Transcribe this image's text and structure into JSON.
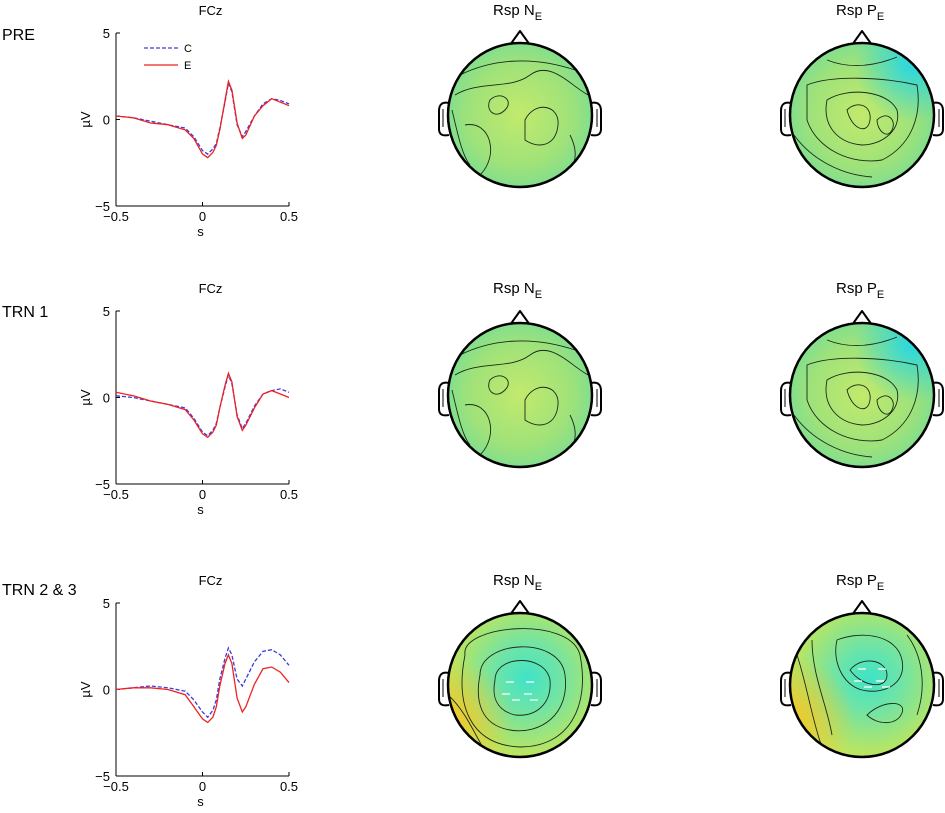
{
  "conditions": [
    "PRE",
    "TRN 1",
    "TRN 2 & 3"
  ],
  "panel_titles": {
    "erp": "FCz",
    "topo_ne_prefix": "Rsp N",
    "topo_pe_prefix": "Rsp P",
    "subscript": "E"
  },
  "legend": {
    "c_label": "C",
    "e_label": "E"
  },
  "colors": {
    "c_line": "#3b3be0",
    "e_line": "#ee2222",
    "axis": "#000000",
    "topo_base": "#a6e36b",
    "topo_cool": "#3fe3c8",
    "topo_warm": "#f2e23a"
  },
  "chart_data": [
    {
      "type": "line",
      "title": "FCz",
      "condition": "PRE",
      "xlabel": "s",
      "ylabel": "µV",
      "xlim": [
        -0.5,
        0.5
      ],
      "ylim": [
        -5,
        5
      ],
      "xticks": [
        -0.5,
        0,
        0.5
      ],
      "yticks": [
        -5,
        0,
        5
      ],
      "xtick_labels": [
        "−0.5",
        "0",
        "0.5"
      ],
      "ytick_labels": [
        "−5",
        "0",
        "5"
      ],
      "legend": "top-left",
      "series": [
        {
          "name": "C",
          "style": "dashed",
          "x": [
            -0.5,
            -0.4,
            -0.3,
            -0.2,
            -0.1,
            -0.05,
            0,
            0.03,
            0.06,
            0.08,
            0.1,
            0.13,
            0.15,
            0.17,
            0.2,
            0.23,
            0.25,
            0.3,
            0.35,
            0.4,
            0.45,
            0.5
          ],
          "y": [
            0.2,
            0.1,
            -0.1,
            -0.3,
            -0.5,
            -1.0,
            -1.8,
            -2.0,
            -1.7,
            -1.4,
            -0.5,
            1.0,
            2.1,
            1.6,
            -0.3,
            -1.0,
            -0.7,
            0.2,
            0.9,
            1.2,
            1.1,
            0.9
          ]
        },
        {
          "name": "E",
          "style": "solid",
          "x": [
            -0.5,
            -0.4,
            -0.3,
            -0.2,
            -0.1,
            -0.05,
            0,
            0.03,
            0.06,
            0.08,
            0.1,
            0.13,
            0.15,
            0.17,
            0.2,
            0.23,
            0.25,
            0.3,
            0.35,
            0.4,
            0.45,
            0.5
          ],
          "y": [
            0.2,
            0.1,
            -0.2,
            -0.3,
            -0.6,
            -1.1,
            -2.0,
            -2.2,
            -1.9,
            -1.5,
            -0.6,
            1.1,
            2.2,
            1.7,
            -0.2,
            -1.1,
            -0.9,
            0.2,
            0.8,
            1.2,
            1.0,
            0.8
          ]
        }
      ]
    },
    {
      "type": "line",
      "title": "FCz",
      "condition": "TRN 1",
      "xlabel": "s",
      "ylabel": "µV",
      "xlim": [
        -0.5,
        0.5
      ],
      "ylim": [
        -5,
        5
      ],
      "xticks": [
        -0.5,
        0,
        0.5
      ],
      "yticks": [
        -5,
        0,
        5
      ],
      "xtick_labels": [
        "−0.5",
        "0",
        "0.5"
      ],
      "ytick_labels": [
        "−5",
        "0",
        "5"
      ],
      "legend": "none",
      "series": [
        {
          "name": "C",
          "style": "dashed",
          "x": [
            -0.5,
            -0.4,
            -0.3,
            -0.2,
            -0.1,
            -0.05,
            0,
            0.03,
            0.06,
            0.08,
            0.1,
            0.13,
            0.15,
            0.17,
            0.2,
            0.23,
            0.25,
            0.3,
            0.35,
            0.4,
            0.45,
            0.5
          ],
          "y": [
            0.1,
            0.0,
            -0.2,
            -0.4,
            -0.6,
            -1.2,
            -2.0,
            -2.2,
            -1.9,
            -1.5,
            -0.6,
            0.6,
            1.3,
            0.8,
            -1.0,
            -1.8,
            -1.5,
            -0.5,
            0.2,
            0.4,
            0.5,
            0.3
          ]
        },
        {
          "name": "E",
          "style": "solid",
          "x": [
            -0.5,
            -0.4,
            -0.3,
            -0.2,
            -0.1,
            -0.05,
            0,
            0.03,
            0.06,
            0.08,
            0.1,
            0.13,
            0.15,
            0.17,
            0.2,
            0.23,
            0.25,
            0.3,
            0.35,
            0.4,
            0.45,
            0.5
          ],
          "y": [
            0.3,
            0.1,
            -0.2,
            -0.4,
            -0.7,
            -1.3,
            -2.1,
            -2.3,
            -2.0,
            -1.6,
            -0.6,
            0.7,
            1.4,
            0.9,
            -1.1,
            -1.9,
            -1.6,
            -0.6,
            0.2,
            0.4,
            0.2,
            0.0
          ]
        }
      ]
    },
    {
      "type": "line",
      "title": "FCz",
      "condition": "TRN 2 & 3",
      "xlabel": "s",
      "ylabel": "µV",
      "xlim": [
        -0.5,
        0.5
      ],
      "ylim": [
        -5,
        5
      ],
      "xticks": [
        -0.5,
        0,
        0.5
      ],
      "yticks": [
        -5,
        0,
        5
      ],
      "xtick_labels": [
        "−0.5",
        "0",
        "0.5"
      ],
      "ytick_labels": [
        "−5",
        "0",
        "5"
      ],
      "legend": "none",
      "series": [
        {
          "name": "C",
          "style": "dashed",
          "x": [
            -0.5,
            -0.4,
            -0.3,
            -0.2,
            -0.1,
            -0.05,
            0,
            0.03,
            0.06,
            0.08,
            0.1,
            0.13,
            0.15,
            0.17,
            0.2,
            0.23,
            0.25,
            0.3,
            0.35,
            0.4,
            0.45,
            0.5
          ],
          "y": [
            0.0,
            0.1,
            0.2,
            0.1,
            -0.1,
            -0.6,
            -1.3,
            -1.6,
            -1.2,
            -0.6,
            0.6,
            1.8,
            2.4,
            2.0,
            0.6,
            0.2,
            0.6,
            1.6,
            2.2,
            2.3,
            2.0,
            1.4
          ]
        },
        {
          "name": "E",
          "style": "solid",
          "x": [
            -0.5,
            -0.4,
            -0.3,
            -0.2,
            -0.1,
            -0.05,
            0,
            0.03,
            0.06,
            0.08,
            0.1,
            0.13,
            0.15,
            0.17,
            0.2,
            0.23,
            0.25,
            0.3,
            0.35,
            0.4,
            0.45,
            0.5
          ],
          "y": [
            0.0,
            0.1,
            0.1,
            0.0,
            -0.3,
            -1.0,
            -1.7,
            -1.9,
            -1.6,
            -1.0,
            0.2,
            1.5,
            2.0,
            1.5,
            -0.5,
            -1.3,
            -1.0,
            0.3,
            1.2,
            1.3,
            1.0,
            0.4
          ]
        }
      ]
    }
  ]
}
